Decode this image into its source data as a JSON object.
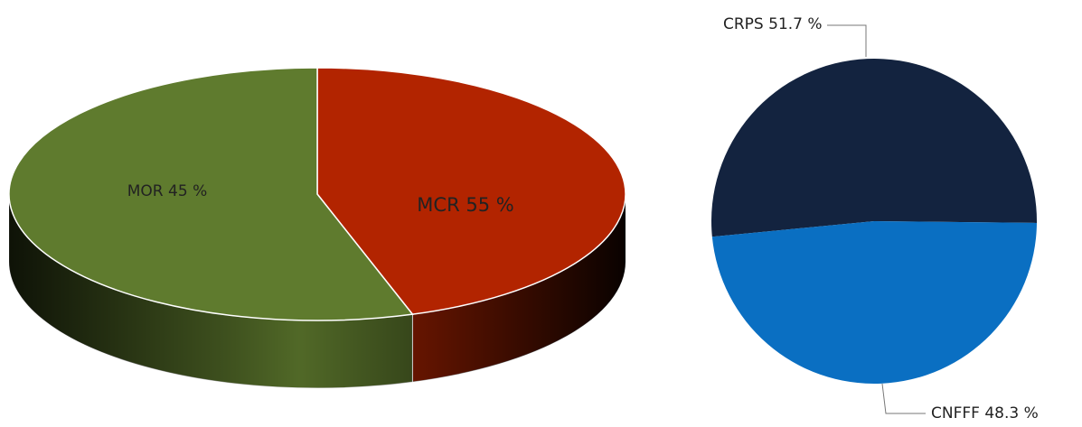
{
  "chart_data": [
    {
      "type": "pie",
      "3d": true,
      "categories": [
        "MOR",
        "MCR"
      ],
      "values": [
        45,
        55
      ],
      "value_labels": [
        "45 %",
        "55 %"
      ],
      "colors": [
        "#b22400",
        "#5f7b2e"
      ]
    },
    {
      "type": "pie",
      "categories": [
        "CRPS",
        "CNFFF"
      ],
      "values": [
        51.7,
        48.3
      ],
      "value_labels": [
        "51.7 %",
        "48.3 %"
      ],
      "colors": [
        "#13233f",
        "#0a6fc2"
      ]
    }
  ]
}
